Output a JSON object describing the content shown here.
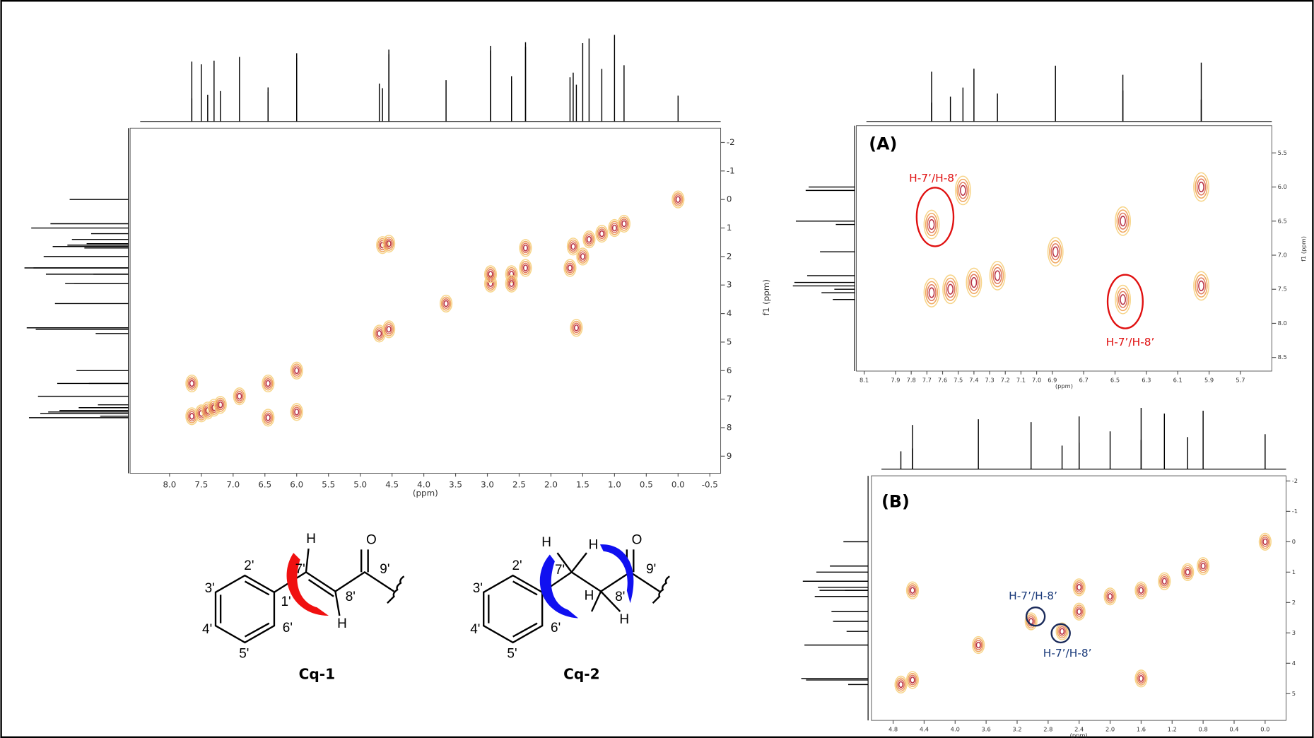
{
  "chart_data": [
    {
      "type": "contour",
      "x_label": "(ppm)",
      "y_label": "f1 (ppm)",
      "xlim": [
        8.62,
        -0.67
      ],
      "ylim": [
        -2.5,
        9.6
      ],
      "xticks": [
        {
          "value": 8,
          "label": "8.0"
        },
        7.5,
        {
          "value": 7,
          "label": "7.0"
        },
        6.5,
        {
          "value": 6,
          "label": "6.0"
        },
        5.5,
        {
          "value": 5,
          "label": "5.0"
        },
        4.5,
        {
          "value": 4,
          "label": "4.0"
        },
        3.5,
        {
          "value": 3,
          "label": "3.0"
        },
        2.5,
        {
          "value": 2,
          "label": "2.0"
        },
        1.5,
        {
          "value": 1,
          "label": "1.0"
        },
        0.5,
        {
          "value": 0,
          "label": "0.0"
        },
        -0.5
      ],
      "yticks": [
        -2,
        -1,
        0,
        1,
        2,
        3,
        4,
        5,
        6,
        7,
        8,
        9
      ],
      "x": [
        7.65,
        7.5,
        7.4,
        7.3,
        7.2,
        6.9,
        6.45,
        6.0,
        4.7,
        4.55,
        3.65,
        2.95,
        2.62,
        2.4,
        1.65,
        1.4,
        1.2,
        1.0,
        0.85,
        0.0,
        7.65,
        6.45,
        6.0,
        4.65,
        4.55,
        1.6,
        2.95,
        2.62,
        2.4,
        1.7,
        1.5
      ],
      "values": [
        7.6,
        7.5,
        7.4,
        7.3,
        7.2,
        6.9,
        6.45,
        6.0,
        4.7,
        4.55,
        3.65,
        2.95,
        2.62,
        2.4,
        1.65,
        1.4,
        1.2,
        1.0,
        0.85,
        0.0,
        6.45,
        7.65,
        7.45,
        1.6,
        1.55,
        4.5,
        2.62,
        2.95,
        1.7,
        2.4,
        2.0
      ]
    },
    {
      "type": "contour",
      "panel_label": "(A)",
      "x_label": "(ppm)",
      "y_label": "f1 (ppm)",
      "annotations": [
        "H-7’/H-8’",
        "H-7’/H-8’"
      ],
      "xlim": [
        8.15,
        5.5
      ],
      "ylim": [
        5.1,
        8.7
      ],
      "xticks": [
        8.1,
        7.9,
        7.8,
        7.7,
        7.6,
        7.5,
        7.4,
        7.3,
        7.2,
        7.1,
        {
          "value": 7,
          "label": "7.0"
        },
        6.9,
        6.7,
        6.5,
        6.3,
        6.1,
        5.9,
        5.7
      ],
      "yticks": [
        5.5,
        {
          "value": 6,
          "label": "6.0"
        },
        6.5,
        {
          "value": 7,
          "label": "7.0"
        },
        7.5,
        {
          "value": 8,
          "label": "8.0"
        },
        8.5
      ],
      "x": [
        7.67,
        6.45,
        5.95,
        7.67,
        7.55,
        7.4,
        7.25,
        6.88,
        6.45,
        5.95,
        7.47
      ],
      "values": [
        6.55,
        6.5,
        6.0,
        7.55,
        7.5,
        7.4,
        7.3,
        6.95,
        7.65,
        7.45,
        6.05
      ]
    },
    {
      "type": "contour",
      "panel_label": "(B)",
      "x_label": "(ppm)",
      "annotations": [
        "H-7’/H-8’",
        "H-7’/H-8’"
      ],
      "xlim": [
        5.08,
        -0.27
      ],
      "ylim": [
        -2.17,
        5.88
      ],
      "xticks": [
        4.8,
        4.4,
        {
          "value": 4,
          "label": "4.0"
        },
        3.6,
        3.2,
        2.8,
        2.4,
        {
          "value": 2,
          "label": "2.0"
        },
        1.6,
        1.2,
        0.8,
        0.4,
        {
          "value": 0,
          "label": "0.0"
        }
      ],
      "yticks": [
        -2,
        -1,
        0,
        1,
        2,
        3,
        4,
        5
      ],
      "x": [
        4.7,
        4.55,
        4.55,
        3.02,
        2.62,
        3.7,
        2.4,
        2.4,
        1.6,
        1.3,
        1.0,
        0.8,
        0.0,
        1.6,
        2.0
      ],
      "values": [
        4.7,
        4.55,
        1.6,
        2.62,
        2.95,
        3.4,
        1.5,
        2.3,
        1.6,
        1.3,
        1.0,
        0.8,
        0.0,
        4.5,
        1.8
      ]
    }
  ],
  "structures": [
    {
      "name": "Cq-1",
      "atoms": [
        "H",
        "O",
        "2'",
        "3'",
        "4'",
        "5'",
        "6'",
        "1'",
        "7'",
        "8'",
        "9'",
        "H"
      ]
    },
    {
      "name": "Cq-2",
      "atoms": [
        "H",
        "H",
        "O",
        "2'",
        "3'",
        "4'",
        "5'",
        "6'",
        "7'",
        "8'",
        "9'",
        "H",
        "H"
      ]
    }
  ]
}
